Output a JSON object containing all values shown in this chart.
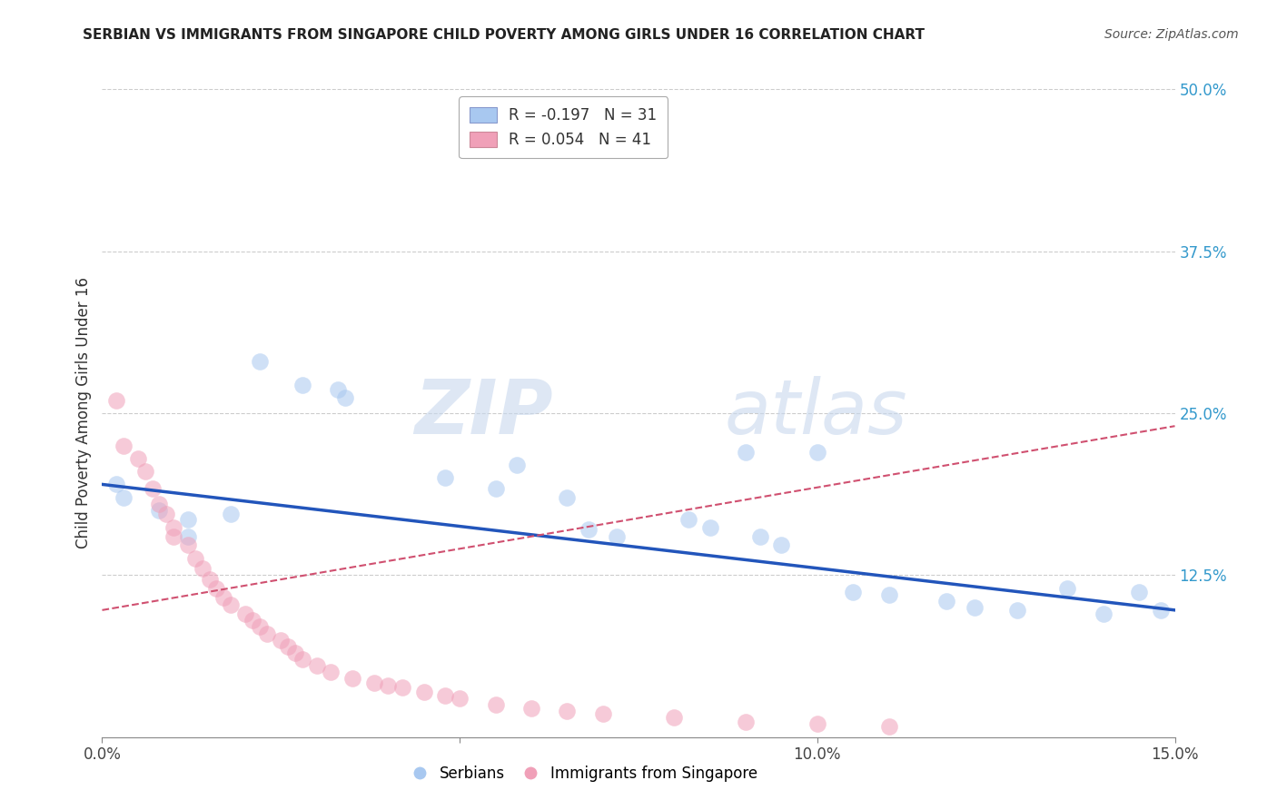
{
  "title": "SERBIAN VS IMMIGRANTS FROM SINGAPORE CHILD POVERTY AMONG GIRLS UNDER 16 CORRELATION CHART",
  "source": "Source: ZipAtlas.com",
  "ylabel": "Child Poverty Among Girls Under 16",
  "xlim": [
    0.0,
    0.15
  ],
  "ylim": [
    0.0,
    0.5
  ],
  "xtick_vals": [
    0.0,
    0.05,
    0.1,
    0.15
  ],
  "xtick_labels": [
    "0.0%",
    "",
    "10.0%",
    "15.0%"
  ],
  "ytick_right_vals": [
    0.125,
    0.25,
    0.375,
    0.5
  ],
  "ytick_right_labels": [
    "12.5%",
    "25.0%",
    "37.5%",
    "50.0%"
  ],
  "legend_line1": "R = -0.197   N = 31",
  "legend_line2": "R = 0.054   N = 41",
  "legend_footer": [
    "Serbians",
    "Immigrants from Singapore"
  ],
  "watermark_zip": "ZIP",
  "watermark_atlas": "atlas",
  "scatter_blue_color": "#a8c8f0",
  "scatter_pink_color": "#f0a0b8",
  "line_blue_color": "#2255bb",
  "line_pink_color": "#d05070",
  "bg_color": "#ffffff",
  "grid_color": "#cccccc",
  "blue_line_y0": 0.195,
  "blue_line_y1": 0.098,
  "pink_line_y0": 0.098,
  "pink_line_y1": 0.24,
  "blue_scatter_x": [
    0.002,
    0.003,
    0.008,
    0.012,
    0.012,
    0.018,
    0.022,
    0.028,
    0.033,
    0.034,
    0.048,
    0.055,
    0.058,
    0.065,
    0.068,
    0.072,
    0.082,
    0.085,
    0.09,
    0.092,
    0.095,
    0.1,
    0.105,
    0.11,
    0.118,
    0.122,
    0.128,
    0.135,
    0.14,
    0.145,
    0.148
  ],
  "blue_scatter_y": [
    0.195,
    0.185,
    0.175,
    0.168,
    0.155,
    0.172,
    0.29,
    0.272,
    0.268,
    0.262,
    0.2,
    0.192,
    0.21,
    0.185,
    0.16,
    0.155,
    0.168,
    0.162,
    0.22,
    0.155,
    0.148,
    0.22,
    0.112,
    0.11,
    0.105,
    0.1,
    0.098,
    0.115,
    0.095,
    0.112,
    0.098
  ],
  "pink_scatter_x": [
    0.002,
    0.003,
    0.005,
    0.006,
    0.007,
    0.008,
    0.009,
    0.01,
    0.01,
    0.012,
    0.013,
    0.014,
    0.015,
    0.016,
    0.017,
    0.018,
    0.02,
    0.021,
    0.022,
    0.023,
    0.025,
    0.026,
    0.027,
    0.028,
    0.03,
    0.032,
    0.035,
    0.038,
    0.04,
    0.042,
    0.045,
    0.048,
    0.05,
    0.055,
    0.06,
    0.065,
    0.07,
    0.08,
    0.09,
    0.1,
    0.11
  ],
  "pink_scatter_y": [
    0.26,
    0.225,
    0.215,
    0.205,
    0.192,
    0.18,
    0.172,
    0.162,
    0.155,
    0.148,
    0.138,
    0.13,
    0.122,
    0.115,
    0.108,
    0.102,
    0.095,
    0.09,
    0.085,
    0.08,
    0.075,
    0.07,
    0.065,
    0.06,
    0.055,
    0.05,
    0.045,
    0.042,
    0.04,
    0.038,
    0.035,
    0.032,
    0.03,
    0.025,
    0.022,
    0.02,
    0.018,
    0.015,
    0.012,
    0.01,
    0.008
  ]
}
